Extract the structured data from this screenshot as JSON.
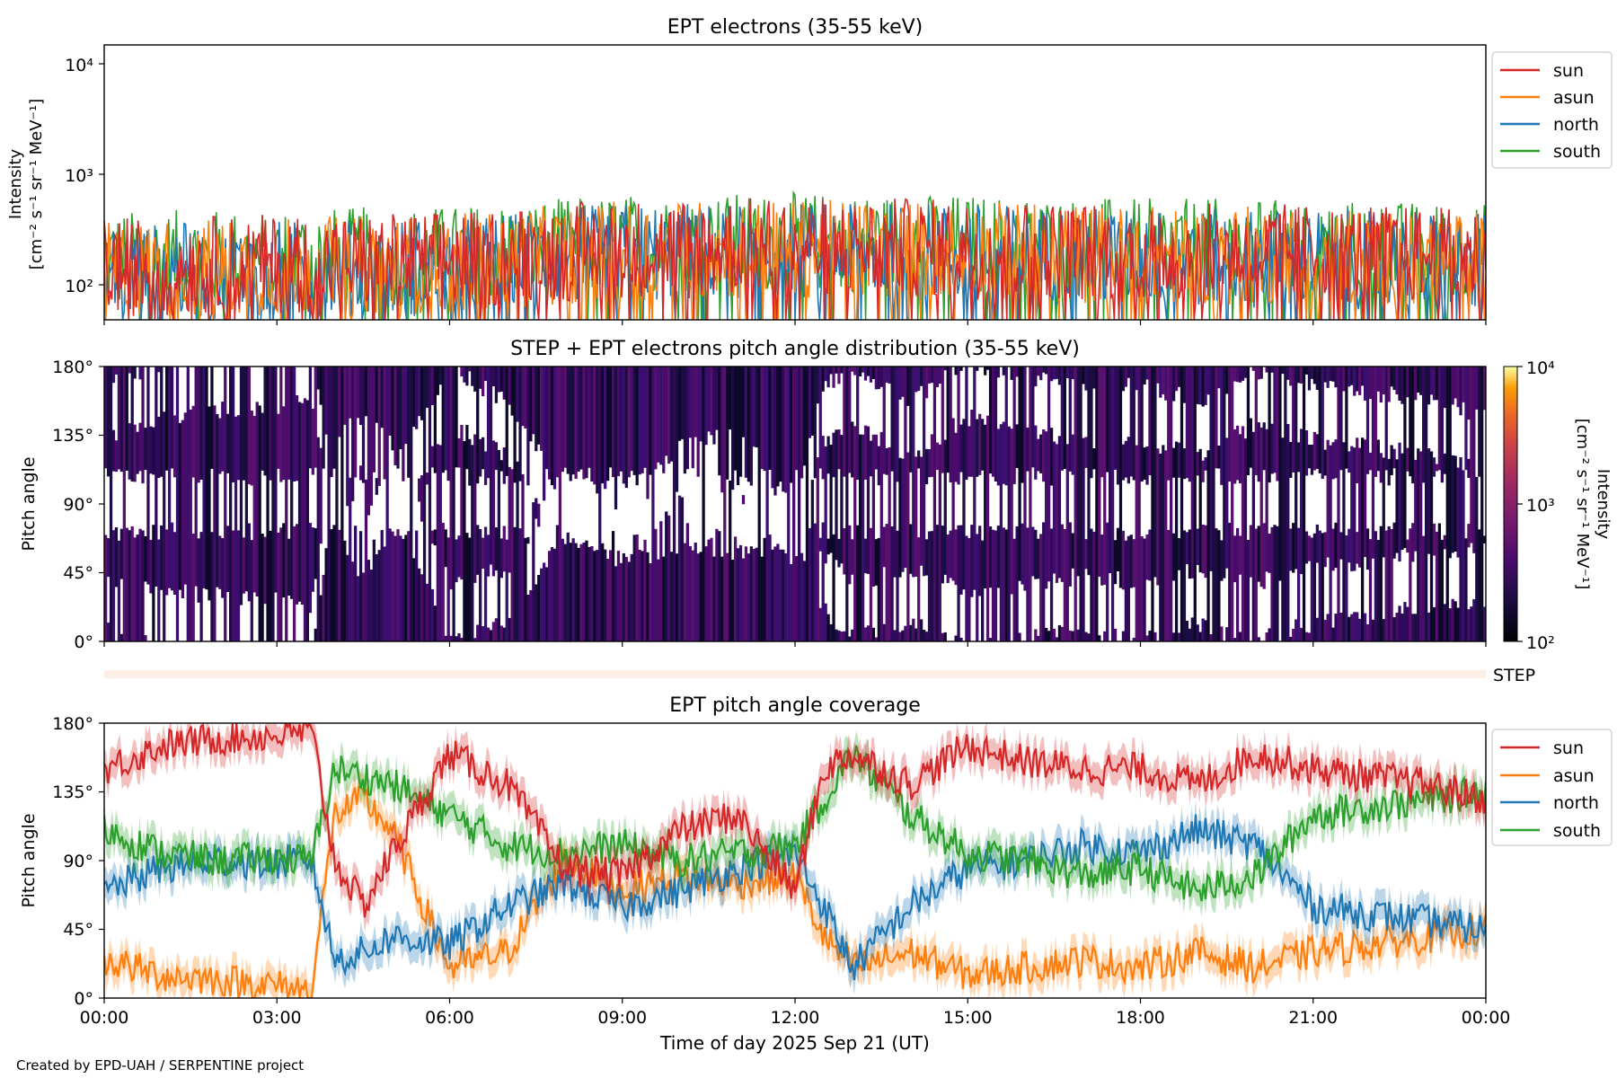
{
  "panel1": {
    "title": "EPT electrons (35-55 keV)",
    "ylabel_line1": "Intensity",
    "ylabel_line2": "[cm⁻² s⁻¹ sr⁻¹ MeV⁻¹]",
    "yticks": [
      "10⁴",
      "10³",
      "10²"
    ],
    "legend": [
      "sun",
      "asun",
      "north",
      "south"
    ]
  },
  "panel2": {
    "title": "STEP + EPT electrons pitch angle distribution (35-55 keV)",
    "ylabel": "Pitch angle",
    "yticks": [
      "180°",
      "135°",
      "90°",
      "45°",
      "0°"
    ],
    "colorbar_label_line1": "Intensity",
    "colorbar_label_line2": "[cm⁻² s⁻¹ sr⁻¹ MeV⁻¹]",
    "colorbar_ticks": [
      "10⁴",
      "10³",
      "10²"
    ]
  },
  "step_strip": {
    "label": "STEP"
  },
  "panel3": {
    "title": "EPT pitch angle coverage",
    "ylabel": "Pitch angle",
    "yticks": [
      "180°",
      "135°",
      "90°",
      "45°",
      "0°"
    ],
    "legend": [
      "sun",
      "asun",
      "north",
      "south"
    ]
  },
  "xaxis": {
    "label": "Time of day 2025 Sep 21 (UT)",
    "ticks": [
      "00:00",
      "03:00",
      "06:00",
      "09:00",
      "12:00",
      "15:00",
      "18:00",
      "21:00",
      "00:00"
    ]
  },
  "credit": "Created by EPD-UAH / SERPENTINE project",
  "colors": {
    "sun": "#d62728",
    "asun": "#ff7f0e",
    "north": "#1f77b4",
    "south": "#2ca02c"
  },
  "chart_data": [
    {
      "type": "line",
      "title": "EPT electrons (35-55 keV)",
      "xlabel": "Time of day 2025 Sep 21 (UT)",
      "ylabel": "Intensity [cm^-2 s^-1 sr^-1 MeV^-1]",
      "yscale": "log",
      "ylim": [
        50,
        15000
      ],
      "xlim_hours": [
        0,
        24
      ],
      "series": [
        {
          "name": "sun",
          "typical": 180,
          "min": 50,
          "max": 800,
          "trend_hours": [
            0,
            6,
            9,
            12,
            15,
            18,
            21,
            24
          ],
          "trend_values": [
            150,
            170,
            220,
            230,
            220,
            200,
            200,
            180
          ]
        },
        {
          "name": "asun",
          "typical": 170,
          "min": 50,
          "max": 600,
          "trend_hours": [
            0,
            6,
            9,
            12,
            15,
            18,
            21,
            24
          ],
          "trend_values": [
            140,
            160,
            210,
            220,
            210,
            190,
            190,
            170
          ]
        },
        {
          "name": "north",
          "typical": 160,
          "min": 50,
          "max": 550,
          "trend_hours": [
            0,
            6,
            9,
            12,
            15,
            18,
            21,
            24
          ],
          "trend_values": [
            130,
            150,
            200,
            210,
            200,
            180,
            180,
            160
          ]
        },
        {
          "name": "south",
          "typical": 200,
          "min": 50,
          "max": 800,
          "trend_hours": [
            0,
            6,
            9,
            12,
            15,
            18,
            21,
            24
          ],
          "trend_values": [
            170,
            190,
            240,
            250,
            240,
            220,
            220,
            200
          ]
        }
      ]
    },
    {
      "type": "heatmap",
      "title": "STEP + EPT electrons pitch angle distribution (35-55 keV)",
      "ylabel": "Pitch angle",
      "ylim_deg": [
        0,
        180
      ],
      "colorscale": "inferno",
      "clim": [
        100,
        10000
      ],
      "dominant_intensity": 200
    },
    {
      "type": "line",
      "title": "EPT pitch angle coverage",
      "ylabel": "Pitch angle",
      "ylim_deg": [
        0,
        180
      ],
      "xlim_hours": [
        0,
        24
      ],
      "band_halfwidth_deg": 10,
      "series": [
        {
          "name": "sun",
          "hours": [
            0,
            1,
            2,
            3,
            3.6,
            4,
            4.5,
            5,
            6,
            7,
            8,
            9,
            10,
            11,
            12,
            12.5,
            13,
            14,
            15,
            16,
            17,
            18,
            19,
            20,
            21,
            22,
            23,
            24
          ],
          "values": [
            150,
            165,
            170,
            172,
            175,
            90,
            60,
            95,
            160,
            140,
            85,
            80,
            110,
            120,
            70,
            150,
            160,
            140,
            165,
            155,
            150,
            150,
            140,
            160,
            150,
            145,
            140,
            130
          ]
        },
        {
          "name": "asun",
          "hours": [
            0,
            1,
            2,
            3,
            3.6,
            4,
            4.5,
            5,
            6,
            7,
            8,
            9,
            10,
            11,
            12,
            12.5,
            13,
            14,
            15,
            16,
            17,
            18,
            19,
            20,
            21,
            22,
            23,
            24
          ],
          "values": [
            25,
            15,
            12,
            8,
            5,
            120,
            130,
            110,
            20,
            30,
            90,
            70,
            80,
            75,
            80,
            40,
            20,
            30,
            15,
            20,
            25,
            20,
            30,
            20,
            30,
            35,
            40,
            45
          ]
        },
        {
          "name": "north",
          "hours": [
            0,
            1,
            2,
            3,
            3.6,
            4,
            4.5,
            5,
            6,
            7,
            8,
            9,
            10,
            11,
            12,
            12.5,
            13,
            14,
            15,
            16,
            17,
            18,
            19,
            20,
            21,
            22,
            23,
            24
          ],
          "values": [
            70,
            85,
            90,
            88,
            90,
            25,
            30,
            40,
            35,
            60,
            75,
            60,
            70,
            85,
            95,
            60,
            20,
            60,
            85,
            90,
            100,
            95,
            110,
            100,
            60,
            55,
            50,
            45
          ]
        },
        {
          "name": "south",
          "hours": [
            0,
            1,
            2,
            3,
            3.6,
            4,
            4.5,
            5,
            6,
            7,
            8,
            9,
            10,
            11,
            12,
            12.5,
            13,
            14,
            15,
            16,
            17,
            18,
            19,
            20,
            21,
            22,
            23,
            24
          ],
          "values": [
            110,
            95,
            90,
            92,
            90,
            150,
            145,
            140,
            120,
            100,
            95,
            100,
            90,
            95,
            100,
            130,
            160,
            120,
            95,
            90,
            80,
            85,
            70,
            80,
            120,
            125,
            130,
            135
          ]
        }
      ]
    }
  ]
}
